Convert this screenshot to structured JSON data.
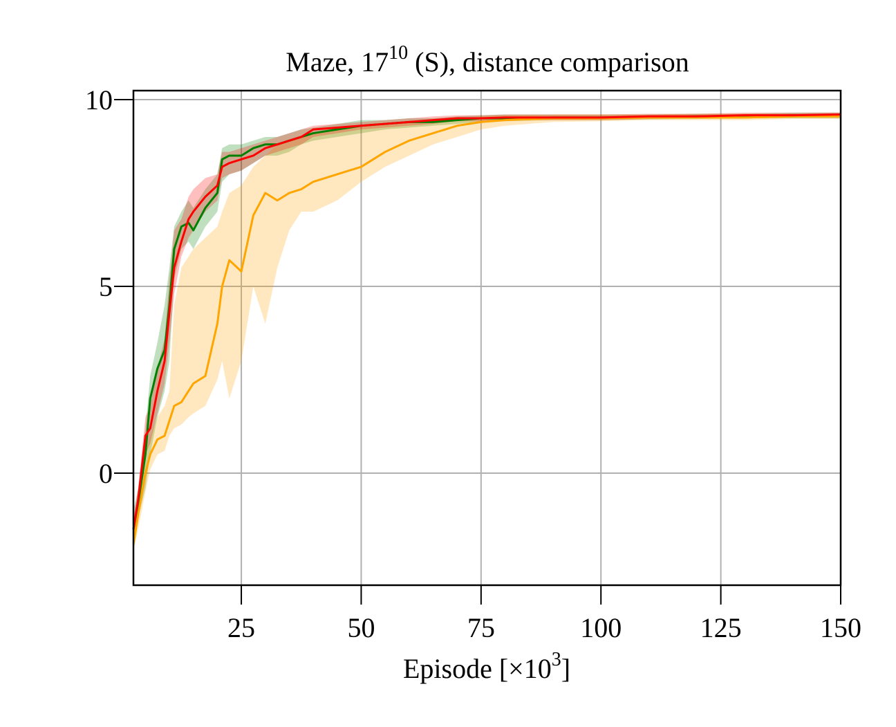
{
  "chart_data": {
    "type": "line",
    "title": {
      "text": "Maze, 17",
      "sup": "10",
      "rest": " (S), distance comparison"
    },
    "x_label": {
      "text": "Episode [×10",
      "sup": "3",
      "rest": "]"
    },
    "x": [
      2.5,
      3.5,
      5,
      6,
      7.5,
      9,
      10,
      11,
      12.5,
      14,
      15,
      17.5,
      20,
      21,
      22.5,
      25,
      27.5,
      30,
      32.5,
      35,
      37.5,
      40,
      45,
      50,
      55,
      60,
      65,
      70,
      75,
      80,
      90,
      100,
      110,
      120,
      130,
      140,
      150
    ],
    "series": [
      {
        "color": "green",
        "values": [
          -1.5,
          -0.8,
          0.5,
          2.0,
          2.8,
          3.3,
          4.5,
          6.0,
          6.6,
          6.7,
          6.5,
          7.1,
          7.5,
          8.4,
          8.5,
          8.5,
          8.7,
          8.8,
          8.8,
          8.9,
          9.0,
          9.1,
          9.2,
          9.3,
          9.35,
          9.4,
          9.4,
          9.45,
          9.5,
          9.5,
          9.52,
          9.52,
          9.53,
          9.55,
          9.55,
          9.58,
          9.58
        ],
        "lower": [
          -2.1,
          -1.2,
          -0.4,
          0.5,
          1.5,
          2.2,
          3.0,
          5.2,
          6.0,
          6.2,
          6.0,
          6.6,
          7.0,
          7.8,
          8.0,
          8.1,
          8.3,
          8.5,
          8.5,
          8.6,
          8.8,
          8.9,
          9.0,
          9.1,
          9.2,
          9.25,
          9.3,
          9.35,
          9.4,
          9.42,
          9.45,
          9.45,
          9.47,
          9.48,
          9.5,
          9.5,
          9.5
        ],
        "upper": [
          -1.0,
          -0.4,
          1.2,
          2.6,
          3.5,
          4.5,
          5.5,
          6.6,
          7.0,
          7.3,
          7.1,
          7.6,
          8.0,
          8.7,
          8.8,
          8.8,
          8.9,
          9.0,
          9.0,
          9.1,
          9.2,
          9.25,
          9.35,
          9.45,
          9.45,
          9.5,
          9.5,
          9.55,
          9.58,
          9.6,
          9.6,
          9.6,
          9.6,
          9.62,
          9.62,
          9.65,
          9.65
        ]
      },
      {
        "color": "orange",
        "values": [
          -1.9,
          -1.1,
          0.0,
          0.5,
          0.9,
          1.0,
          1.4,
          1.8,
          1.9,
          2.2,
          2.4,
          2.6,
          4.0,
          5.0,
          5.7,
          5.4,
          6.9,
          7.5,
          7.3,
          7.5,
          7.6,
          7.8,
          8.0,
          8.2,
          8.6,
          8.9,
          9.1,
          9.3,
          9.4,
          9.45,
          9.5,
          9.5,
          9.52,
          9.52,
          9.52,
          9.55,
          9.55
        ],
        "lower": [
          -2.1,
          -1.5,
          -0.5,
          0.1,
          0.5,
          0.6,
          1.0,
          1.2,
          1.3,
          1.5,
          1.6,
          1.8,
          2.5,
          3.0,
          2.0,
          3.0,
          5.0,
          4.0,
          5.5,
          6.5,
          7.0,
          7.0,
          7.3,
          7.8,
          8.2,
          8.5,
          8.8,
          9.0,
          9.2,
          9.3,
          9.4,
          9.42,
          9.45,
          9.45,
          9.45,
          9.48,
          9.48
        ],
        "upper": [
          -1.6,
          -0.6,
          0.5,
          1.0,
          1.5,
          1.8,
          2.2,
          4.5,
          5.5,
          5.8,
          6.0,
          6.3,
          6.6,
          7.0,
          7.5,
          7.7,
          8.2,
          8.5,
          8.8,
          8.9,
          9.0,
          9.1,
          9.2,
          9.3,
          9.35,
          9.4,
          9.45,
          9.5,
          9.55,
          9.58,
          9.6,
          9.6,
          9.6,
          9.62,
          9.62,
          9.62,
          9.62
        ]
      },
      {
        "color": "red",
        "values": [
          -1.5,
          -0.7,
          1.0,
          1.2,
          2.2,
          3.0,
          4.3,
          5.5,
          6.2,
          6.8,
          7.0,
          7.4,
          7.7,
          8.2,
          8.3,
          8.4,
          8.5,
          8.7,
          8.8,
          8.9,
          9.0,
          9.2,
          9.25,
          9.3,
          9.35,
          9.4,
          9.45,
          9.5,
          9.5,
          9.52,
          9.52,
          9.52,
          9.55,
          9.55,
          9.58,
          9.58,
          9.6
        ],
        "lower": [
          -1.8,
          -1.0,
          0.5,
          0.8,
          1.6,
          2.4,
          3.5,
          4.8,
          5.8,
          6.3,
          6.5,
          7.0,
          7.3,
          7.9,
          8.0,
          8.1,
          8.3,
          8.5,
          8.6,
          8.7,
          8.8,
          9.0,
          9.1,
          9.2,
          9.25,
          9.3,
          9.35,
          9.42,
          9.42,
          9.45,
          9.45,
          9.45,
          9.48,
          9.5,
          9.5,
          9.52,
          9.55
        ],
        "upper": [
          -1.2,
          -0.4,
          1.5,
          1.8,
          2.8,
          3.6,
          5.2,
          6.5,
          6.8,
          7.4,
          7.6,
          7.9,
          8.0,
          8.6,
          8.6,
          8.7,
          8.8,
          8.9,
          9.0,
          9.1,
          9.2,
          9.3,
          9.35,
          9.4,
          9.45,
          9.5,
          9.55,
          9.58,
          9.58,
          9.6,
          9.6,
          9.6,
          9.62,
          9.62,
          9.65,
          9.65,
          9.66
        ]
      }
    ],
    "xlim": [
      2.5,
      150
    ],
    "ylim": [
      -3,
      10.24
    ],
    "xticks": [
      25,
      50,
      75,
      100,
      125,
      150
    ],
    "yticks": [
      0,
      5,
      10
    ],
    "grid": true
  }
}
